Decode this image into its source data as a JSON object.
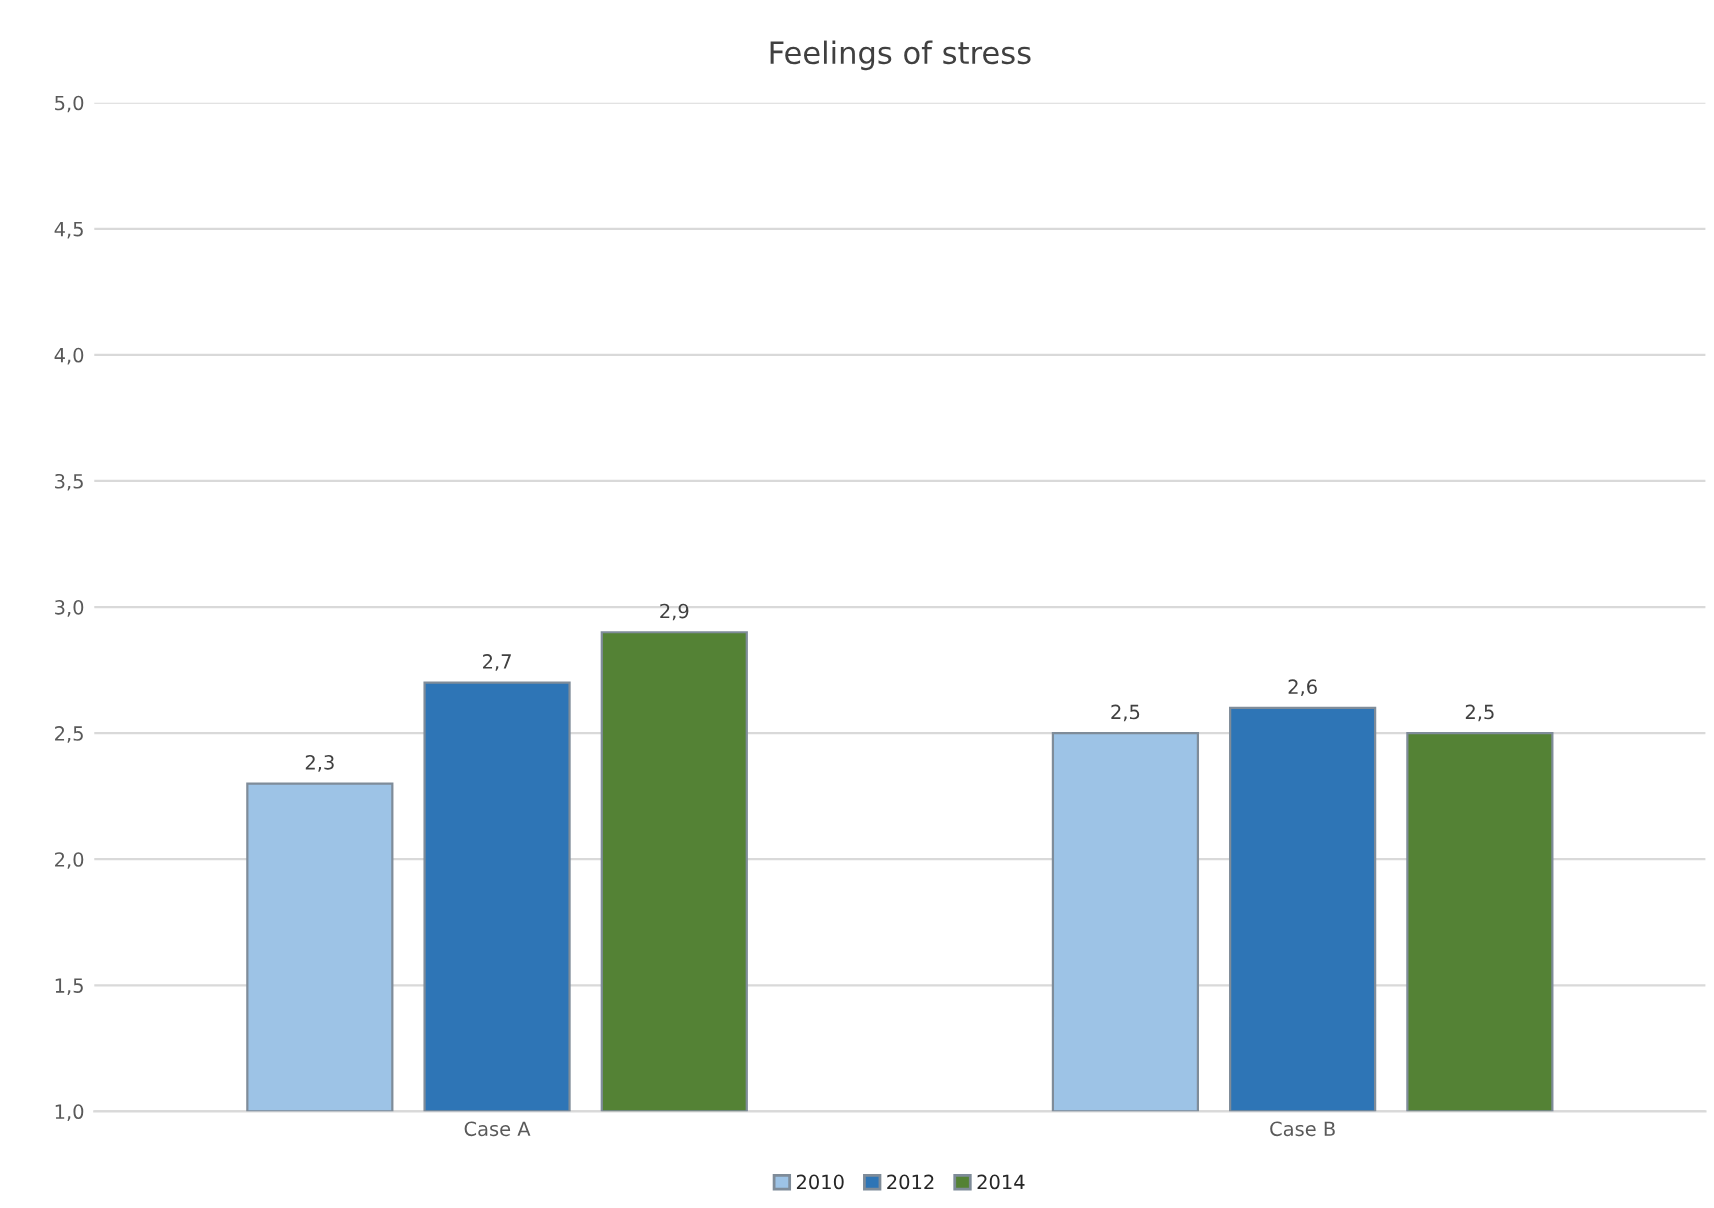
{
  "chart_data": {
    "type": "bar",
    "title": "Feelings of stress",
    "categories": [
      "Case A",
      "Case B"
    ],
    "series": [
      {
        "name": "2010",
        "color": "#9dc3e6",
        "values": [
          2.3,
          2.5
        ],
        "value_labels": [
          "2,3",
          "2,5"
        ]
      },
      {
        "name": "2012",
        "color": "#2e75b6",
        "values": [
          2.7,
          2.6
        ],
        "value_labels": [
          "2,7",
          "2,6"
        ]
      },
      {
        "name": "2014",
        "color": "#548235",
        "values": [
          2.9,
          2.5
        ],
        "value_labels": [
          "2,9",
          "2,5"
        ]
      }
    ],
    "ylim": [
      1.0,
      5.0
    ],
    "yticks": [
      {
        "value": 1.0,
        "label": "1,0"
      },
      {
        "value": 1.5,
        "label": "1,5"
      },
      {
        "value": 2.0,
        "label": "2,0"
      },
      {
        "value": 2.5,
        "label": "2,5"
      },
      {
        "value": 3.0,
        "label": "3,0"
      },
      {
        "value": 3.5,
        "label": "3,5"
      },
      {
        "value": 4.0,
        "label": "4,0"
      },
      {
        "value": 4.5,
        "label": "4,5"
      },
      {
        "value": 5.0,
        "label": "5,0"
      }
    ],
    "grid": "y",
    "legend": "bottom"
  }
}
